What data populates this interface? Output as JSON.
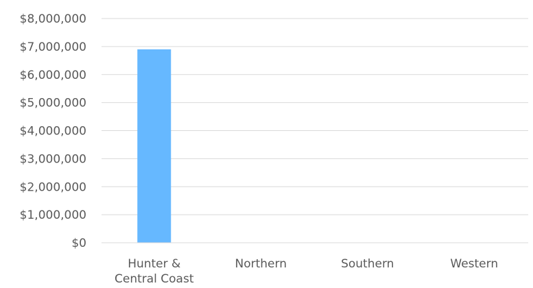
{
  "chart_data": {
    "type": "bar",
    "categories": [
      [
        "Hunter &",
        "Central Coast"
      ],
      [
        "Northern"
      ],
      [
        "Southern"
      ],
      [
        "Western"
      ]
    ],
    "values": [
      6900000,
      0,
      0,
      0
    ],
    "y_ticks": [
      "$0",
      "$1,000,000",
      "$2,000,000",
      "$3,000,000",
      "$4,000,000",
      "$5,000,000",
      "$6,000,000",
      "$7,000,000",
      "$8,000,000"
    ],
    "ylim": [
      0,
      8000000
    ],
    "y_step": 1000000,
    "grid": true,
    "legend": "none",
    "bar_color": "#66b8ff",
    "title": "",
    "xlabel": "",
    "ylabel": ""
  }
}
